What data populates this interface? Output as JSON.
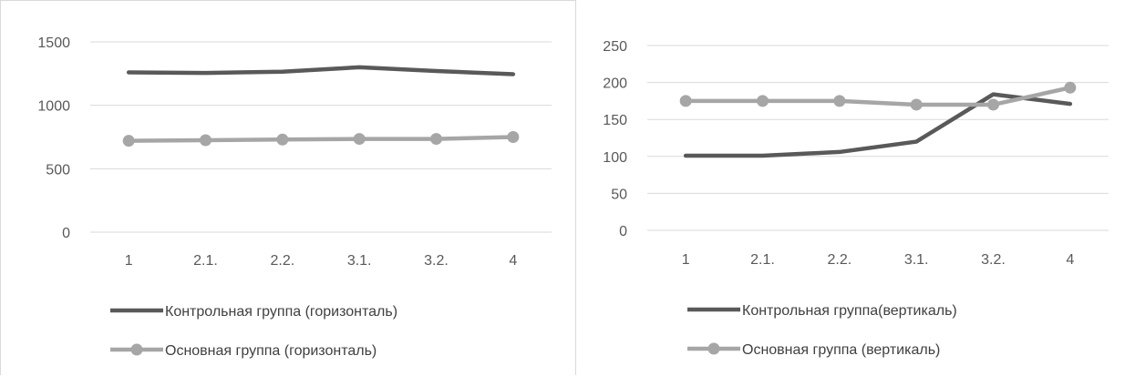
{
  "chart_data": [
    {
      "type": "line",
      "categories": [
        "1",
        "2.1.",
        "2.2.",
        "3.1.",
        "3.2.",
        "4"
      ],
      "y_ticks": [
        "0",
        "500",
        "1000",
        "1500"
      ],
      "ylim": [
        0,
        1500
      ],
      "grid": true,
      "legend_position": "bottom",
      "colors": {
        "dark": "#595959",
        "light": "#a6a6a6",
        "grid": "#d9d9d9"
      },
      "series": [
        {
          "name": "Контрольная группа (горизонталь)",
          "values": [
            1260,
            1255,
            1265,
            1300,
            1270,
            1245
          ],
          "markers": false
        },
        {
          "name": "Основная группа (горизонталь)",
          "values": [
            720,
            725,
            730,
            735,
            735,
            750
          ],
          "markers": true
        }
      ]
    },
    {
      "type": "line",
      "categories": [
        "1",
        "2.1.",
        "2.2.",
        "3.1.",
        "3.2.",
        "4"
      ],
      "y_ticks": [
        "0",
        "50",
        "100",
        "150",
        "200",
        "250"
      ],
      "ylim": [
        0,
        250
      ],
      "grid": true,
      "legend_position": "bottom",
      "colors": {
        "dark": "#595959",
        "light": "#a6a6a6",
        "grid": "#d9d9d9"
      },
      "series": [
        {
          "name": "Контрольная группа(вертикаль)",
          "values": [
            101,
            101,
            106,
            120,
            184,
            171
          ],
          "markers": false
        },
        {
          "name": "Основная группа (вертикаль)",
          "values": [
            175,
            175,
            175,
            170,
            170,
            193
          ],
          "markers": true
        }
      ]
    }
  ]
}
